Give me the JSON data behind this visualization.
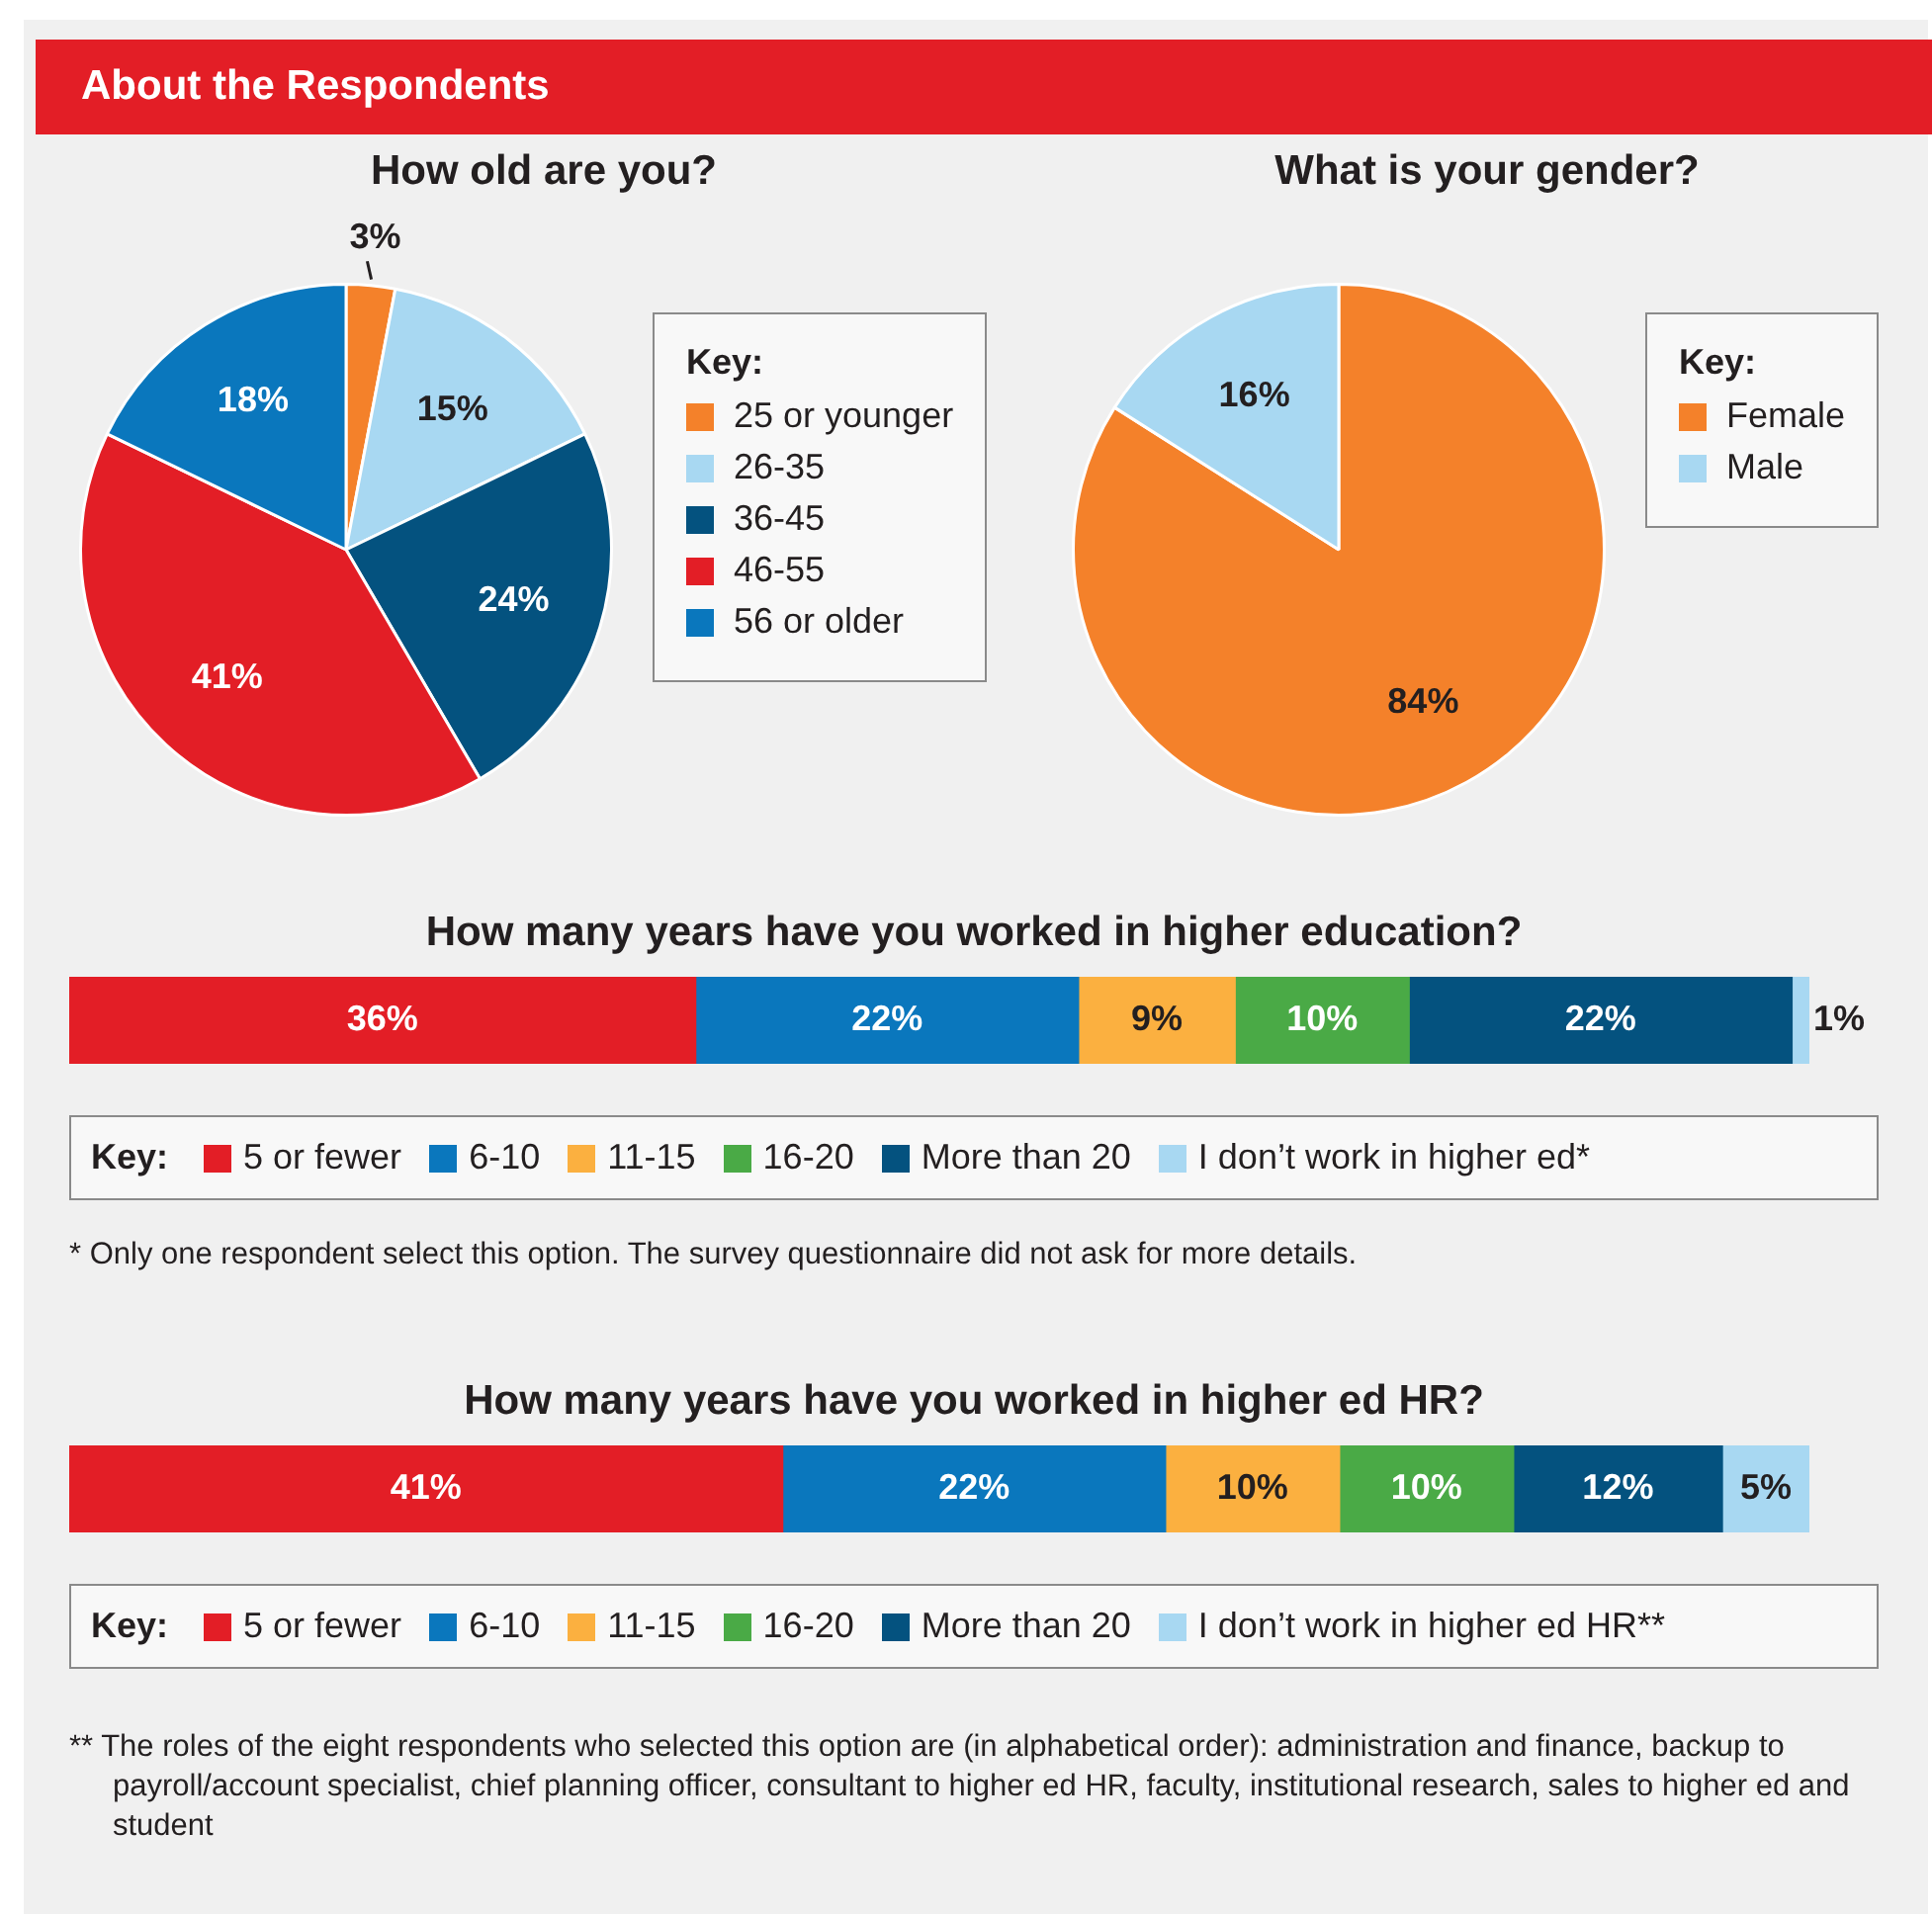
{
  "chart_data": [
    {
      "type": "pie",
      "title": "How old are you?",
      "annotations": [
        "About the Respondents"
      ],
      "legend": "right",
      "legend_title": "Key:",
      "categories": [
        "25 or younger",
        "26-35",
        "36-45",
        "46-55",
        "56 or older"
      ],
      "values": [
        3,
        15,
        24,
        41,
        18
      ],
      "value_labels": [
        "3%",
        "15%",
        "24%",
        "41%",
        "18%"
      ],
      "colors": [
        "#f4812a",
        "#a8d8f2",
        "#04527f",
        "#e31e26",
        "#0a77bd"
      ]
    },
    {
      "type": "pie",
      "title": "What is your gender?",
      "legend": "right",
      "legend_title": "Key:",
      "categories": [
        "Female",
        "Male"
      ],
      "values": [
        84,
        16
      ],
      "value_labels": [
        "84%",
        "16%"
      ],
      "colors": [
        "#f4812a",
        "#a8d8f2"
      ]
    },
    {
      "type": "bar",
      "title": "How many years have you worked in higher education?",
      "orientation": "horizontal",
      "stacked": true,
      "legend": "bottom",
      "legend_title": "Key:",
      "categories": [
        null
      ],
      "series": [
        {
          "name": "5 or fewer",
          "color": "#e31e26",
          "values": [
            36
          ],
          "value_labels": [
            "36%"
          ]
        },
        {
          "name": "6-10",
          "color": "#0a77bd",
          "values": [
            22
          ],
          "value_labels": [
            "22%"
          ]
        },
        {
          "name": "11-15",
          "color": "#fbb040",
          "values": [
            9
          ],
          "value_labels": [
            "9%"
          ]
        },
        {
          "name": "16-20",
          "color": "#4aaa46",
          "values": [
            10
          ],
          "value_labels": [
            "10%"
          ]
        },
        {
          "name": "More than 20",
          "color": "#04527f",
          "values": [
            22
          ],
          "value_labels": [
            "22%"
          ]
        },
        {
          "name": "I don’t work in higher ed*",
          "color": "#a8d8f2",
          "values": [
            1
          ],
          "value_labels": [
            "1%"
          ]
        }
      ],
      "annotations": [
        "* Only one respondent select this option. The survey questionnaire did not ask for more details."
      ]
    },
    {
      "type": "bar",
      "title": "How many years have you worked in higher ed HR?",
      "orientation": "horizontal",
      "stacked": true,
      "legend": "bottom",
      "legend_title": "Key:",
      "categories": [
        null
      ],
      "series": [
        {
          "name": "5 or fewer",
          "color": "#e31e26",
          "values": [
            41
          ],
          "value_labels": [
            "41%"
          ]
        },
        {
          "name": "6-10",
          "color": "#0a77bd",
          "values": [
            22
          ],
          "value_labels": [
            "22%"
          ]
        },
        {
          "name": "11-15",
          "color": "#fbb040",
          "values": [
            10
          ],
          "value_labels": [
            "10%"
          ]
        },
        {
          "name": "16-20",
          "color": "#4aaa46",
          "values": [
            10
          ],
          "value_labels": [
            "10%"
          ]
        },
        {
          "name": "More than 20",
          "color": "#04527f",
          "values": [
            12
          ],
          "value_labels": [
            "12%"
          ]
        },
        {
          "name": "I don’t work in higher ed HR**",
          "color": "#a8d8f2",
          "values": [
            5
          ],
          "value_labels": [
            "5%"
          ]
        }
      ],
      "annotations": [
        "** The roles of the eight respondents who selected this option are (in alphabetical order): administration and finance, backup to payroll/account specialist, chief planning officer, consultant to higher ed HR, faculty, institutional research, sales to higher ed and student"
      ]
    }
  ]
}
